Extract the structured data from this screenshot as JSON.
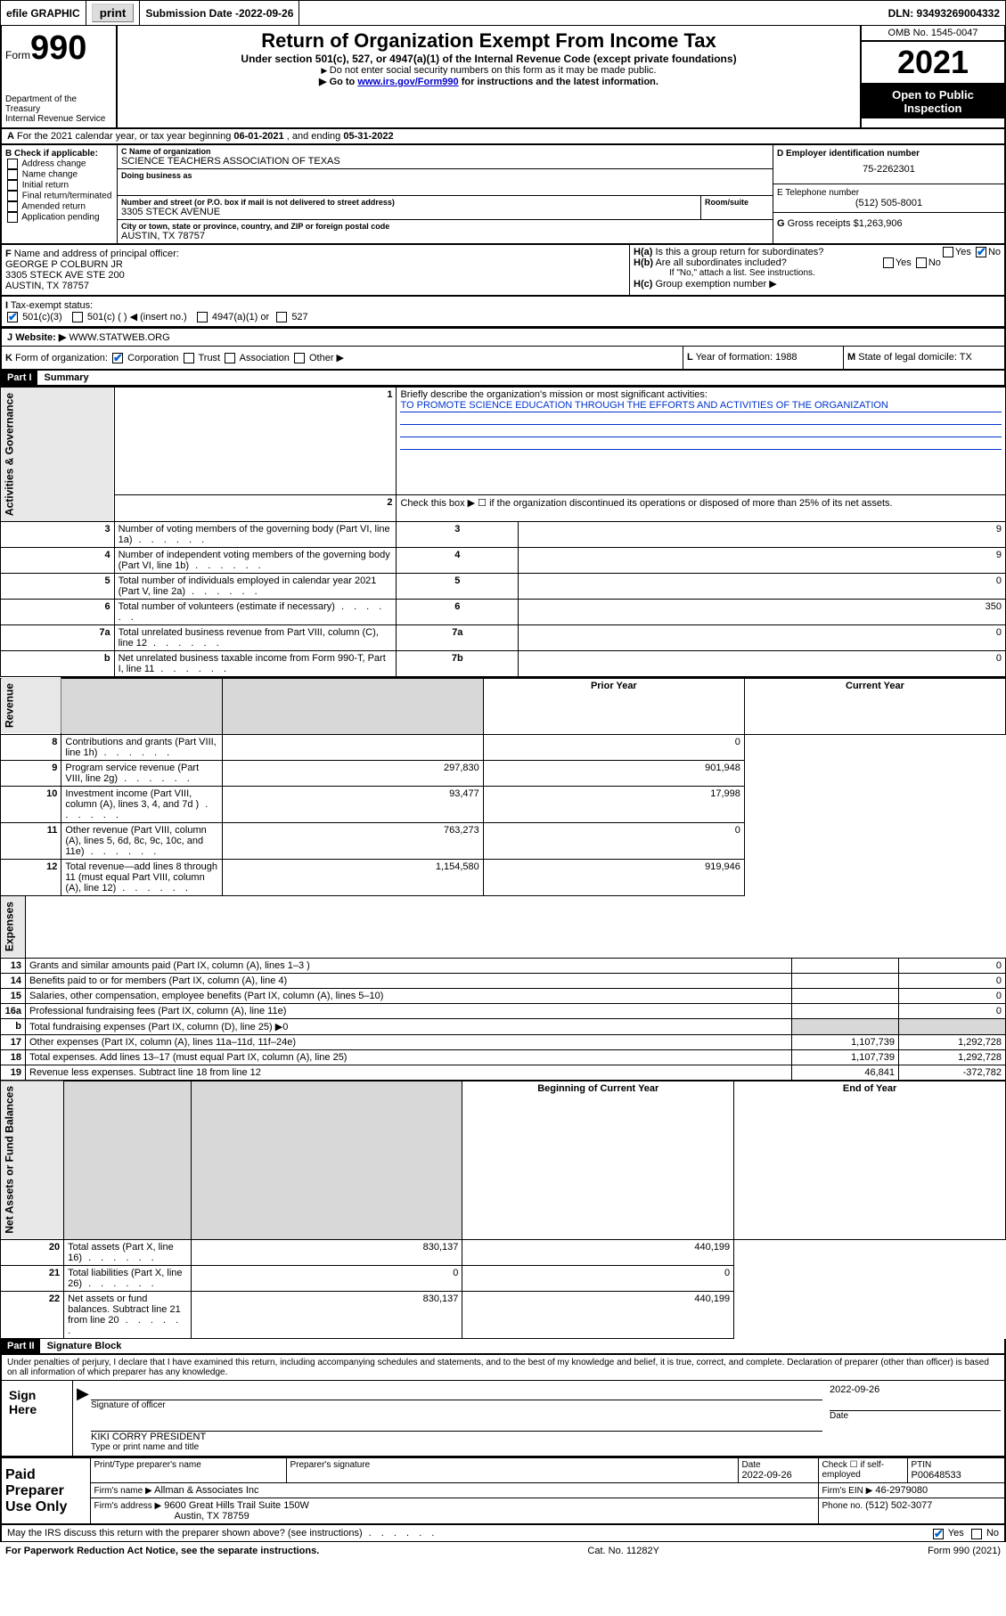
{
  "topbar": {
    "efile": "efile GRAPHIC",
    "print": "print",
    "subLabel": "Submission Date - ",
    "subDate": "2022-09-26",
    "dln": "DLN: 93493269004332"
  },
  "header": {
    "formWord": "Form",
    "formNum": "990",
    "dept": "Department of the Treasury",
    "irs": "Internal Revenue Service",
    "title": "Return of Organization Exempt From Income Tax",
    "sub": "Under section 501(c), 527, or 4947(a)(1) of the Internal Revenue Code (except private foundations)",
    "note1": "Do not enter social security numbers on this form as it may be made public.",
    "note2a": "Go to ",
    "note2link": "www.irs.gov/Form990",
    "note2b": " for instructions and the latest information.",
    "omb": "OMB No. 1545-0047",
    "year": "2021",
    "openPublic": "Open to Public Inspection"
  },
  "A": {
    "text": "For the 2021 calendar year, or tax year beginning ",
    "begin": "06-01-2021",
    "mid": " , and ending ",
    "end": "05-31-2022"
  },
  "B": {
    "label": "B",
    "title": "Check if applicable:",
    "items": [
      "Address change",
      "Name change",
      "Initial return",
      "Final return/terminated",
      "Amended return",
      "Application pending"
    ]
  },
  "C": {
    "nameLabel": "C Name of organization",
    "name": "SCIENCE TEACHERS ASSOCIATION OF TEXAS",
    "dbaLabel": "Doing business as",
    "addrLabel": "Number and street (or P.O. box if mail is not delivered to street address)",
    "suiteLabel": "Room/suite",
    "addr": "3305 STECK AVENUE",
    "cityLabel": "City or town, state or province, country, and ZIP or foreign postal code",
    "city": "AUSTIN, TX  78757"
  },
  "D": {
    "label": "D Employer identification number",
    "val": "75-2262301"
  },
  "E": {
    "label": "E Telephone number",
    "val": "(512) 505-8001"
  },
  "G": {
    "label": "G",
    "text": "Gross receipts $",
    "val": "1,263,906"
  },
  "F": {
    "label": "F",
    "text": "Name and address of principal officer:",
    "name": "GEORGE P COLBURN JR",
    "addr1": "3305 STECK AVE STE 200",
    "addr2": "AUSTIN, TX  78757"
  },
  "H": {
    "aLabel": "H(a)",
    "aText": "Is this a group return for subordinates?",
    "bLabel": "H(b)",
    "bText": "Are all subordinates included?",
    "bNote": "If \"No,\" attach a list. See instructions.",
    "cLabel": "H(c)",
    "cText": "Group exemption number ▶",
    "yes": "Yes",
    "no": "No"
  },
  "I": {
    "label": "I",
    "text": "Tax-exempt status:",
    "opt1": "501(c)(3)",
    "opt2": "501(c) (  ) ◀ (insert no.)",
    "opt3": "4947(a)(1) or",
    "opt4": "527"
  },
  "J": {
    "label": "J",
    "text": "Website: ▶",
    "val": "WWW.STATWEB.ORG"
  },
  "K": {
    "label": "K",
    "text": "Form of organization:",
    "opts": [
      "Corporation",
      "Trust",
      "Association",
      "Other ▶"
    ]
  },
  "L": {
    "label": "L",
    "text": "Year of formation:",
    "val": "1988"
  },
  "M": {
    "label": "M",
    "text": "State of legal domicile:",
    "val": "TX"
  },
  "part1": {
    "label": "Part I",
    "title": "Summary"
  },
  "p1": {
    "l1a": "Briefly describe the organization's mission or most significant activities:",
    "l1b": "TO PROMOTE SCIENCE EDUCATION THROUGH THE EFFORTS AND ACTIVITIES OF THE ORGANIZATION",
    "l2": "Check this box ▶ ☐ if the organization discontinued its operations or disposed of more than 25% of its net assets.",
    "rows": [
      {
        "n": "3",
        "t": "Number of voting members of the governing body (Part VI, line 1a)",
        "box": "3",
        "v": "9"
      },
      {
        "n": "4",
        "t": "Number of independent voting members of the governing body (Part VI, line 1b)",
        "box": "4",
        "v": "9"
      },
      {
        "n": "5",
        "t": "Total number of individuals employed in calendar year 2021 (Part V, line 2a)",
        "box": "5",
        "v": "0"
      },
      {
        "n": "6",
        "t": "Total number of volunteers (estimate if necessary)",
        "box": "6",
        "v": "350"
      },
      {
        "n": "7a",
        "t": "Total unrelated business revenue from Part VIII, column (C), line 12",
        "box": "7a",
        "v": "0"
      },
      {
        "n": "b",
        "t": "Net unrelated business taxable income from Form 990-T, Part I, line 11",
        "box": "7b",
        "v": "0"
      }
    ],
    "colPrior": "Prior Year",
    "colCurrent": "Current Year",
    "rev": [
      {
        "n": "8",
        "t": "Contributions and grants (Part VIII, line 1h)",
        "p": "",
        "c": "0"
      },
      {
        "n": "9",
        "t": "Program service revenue (Part VIII, line 2g)",
        "p": "297,830",
        "c": "901,948"
      },
      {
        "n": "10",
        "t": "Investment income (Part VIII, column (A), lines 3, 4, and 7d )",
        "p": "93,477",
        "c": "17,998"
      },
      {
        "n": "11",
        "t": "Other revenue (Part VIII, column (A), lines 5, 6d, 8c, 9c, 10c, and 11e)",
        "p": "763,273",
        "c": "0"
      },
      {
        "n": "12",
        "t": "Total revenue—add lines 8 through 11 (must equal Part VIII, column (A), line 12)",
        "p": "1,154,580",
        "c": "919,946"
      }
    ],
    "exp": [
      {
        "n": "13",
        "t": "Grants and similar amounts paid (Part IX, column (A), lines 1–3 )",
        "p": "",
        "c": "0"
      },
      {
        "n": "14",
        "t": "Benefits paid to or for members (Part IX, column (A), line 4)",
        "p": "",
        "c": "0"
      },
      {
        "n": "15",
        "t": "Salaries, other compensation, employee benefits (Part IX, column (A), lines 5–10)",
        "p": "",
        "c": "0"
      },
      {
        "n": "16a",
        "t": "Professional fundraising fees (Part IX, column (A), line 11e)",
        "p": "",
        "c": "0"
      },
      {
        "n": "b",
        "t": "Total fundraising expenses (Part IX, column (D), line 25) ▶0",
        "p": "shade",
        "c": "shade"
      },
      {
        "n": "17",
        "t": "Other expenses (Part IX, column (A), lines 11a–11d, 11f–24e)",
        "p": "1,107,739",
        "c": "1,292,728"
      },
      {
        "n": "18",
        "t": "Total expenses. Add lines 13–17 (must equal Part IX, column (A), line 25)",
        "p": "1,107,739",
        "c": "1,292,728"
      },
      {
        "n": "19",
        "t": "Revenue less expenses. Subtract line 18 from line 12",
        "p": "46,841",
        "c": "-372,782"
      }
    ],
    "colBegin": "Beginning of Current Year",
    "colEnd": "End of Year",
    "net": [
      {
        "n": "20",
        "t": "Total assets (Part X, line 16)",
        "p": "830,137",
        "c": "440,199"
      },
      {
        "n": "21",
        "t": "Total liabilities (Part X, line 26)",
        "p": "0",
        "c": "0"
      },
      {
        "n": "22",
        "t": "Net assets or fund balances. Subtract line 21 from line 20",
        "p": "830,137",
        "c": "440,199"
      }
    ],
    "sideLabels": {
      "ag": "Activities & Governance",
      "rev": "Revenue",
      "exp": "Expenses",
      "net": "Net Assets or Fund Balances"
    }
  },
  "part2": {
    "label": "Part II",
    "title": "Signature Block",
    "penalty": "Under penalties of perjury, I declare that I have examined this return, including accompanying schedules and statements, and to the best of my knowledge and belief, it is true, correct, and complete. Declaration of preparer (other than officer) is based on all information of which preparer has any knowledge.",
    "signHere": "Sign Here",
    "sigOfficer": "Signature of officer",
    "date": "Date",
    "dateVal": "2022-09-26",
    "officerName": "KIKI CORRY  PRESIDENT",
    "typeName": "Type or print name and title",
    "paid": "Paid Preparer Use Only",
    "prepName": "Print/Type preparer's name",
    "prepSig": "Preparer's signature",
    "prepDate": "Date",
    "prepDateVal": "2022-09-26",
    "checkIf": "Check ☐ if self-employed",
    "ptin": "PTIN",
    "ptinVal": "P00648533",
    "firmName": "Firm's name   ▶",
    "firmNameVal": "Allman & Associates Inc",
    "firmEin": "Firm's EIN ▶",
    "firmEinVal": "46-2979080",
    "firmAddr": "Firm's address ▶",
    "firmAddrVal": "9600 Great Hills Trail Suite 150W",
    "firmCity": "Austin, TX  78759",
    "phone": "Phone no.",
    "phoneVal": "(512) 502-3077",
    "discuss": "May the IRS discuss this return with the preparer shown above? (see instructions)"
  },
  "footer": {
    "left": "For Paperwork Reduction Act Notice, see the separate instructions.",
    "mid": "Cat. No. 11282Y",
    "right": "Form 990 (2021)"
  }
}
